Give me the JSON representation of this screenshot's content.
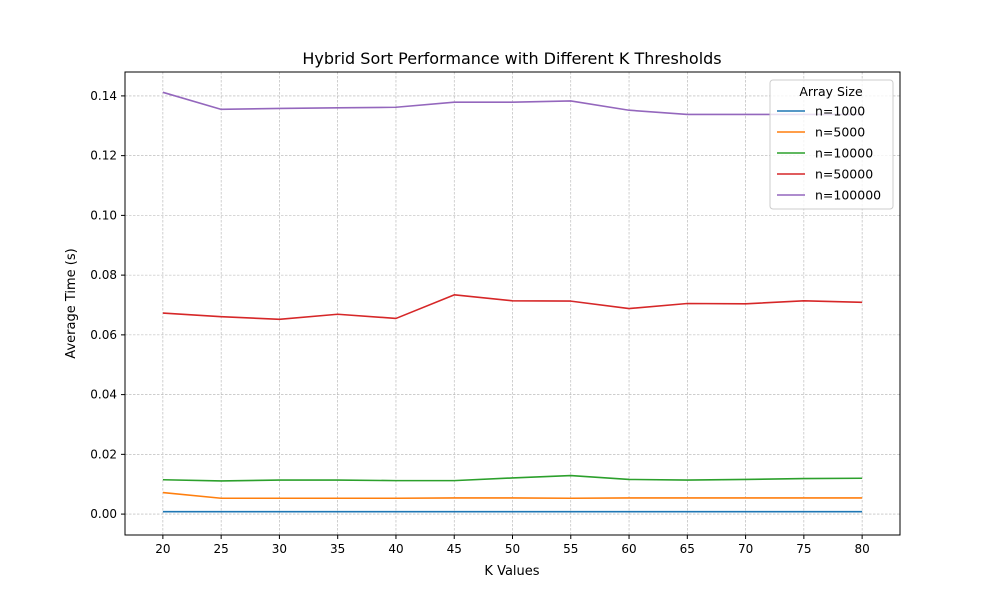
{
  "chart_data": {
    "type": "line",
    "title": "Hybrid Sort Performance with Different K Thresholds",
    "xlabel": "K Values",
    "ylabel": "Average Time (s)",
    "x": [
      20,
      25,
      30,
      35,
      40,
      45,
      50,
      55,
      60,
      65,
      70,
      75,
      80
    ],
    "xticks": [
      "20",
      "25",
      "30",
      "35",
      "40",
      "45",
      "50",
      "55",
      "60",
      "65",
      "70",
      "75",
      "80"
    ],
    "yticks": [
      "0.00",
      "0.02",
      "0.04",
      "0.06",
      "0.08",
      "0.10",
      "0.12",
      "0.14"
    ],
    "xlim": [
      16.75,
      83.25
    ],
    "ylim": [
      -0.007,
      0.148
    ],
    "grid": true,
    "legend": {
      "title": "Array Size",
      "placement": "top-right"
    },
    "series": [
      {
        "name": "n=1000",
        "color": "#1f77b4",
        "values": [
          0.0008,
          0.0008,
          0.0008,
          0.0008,
          0.0008,
          0.0008,
          0.0008,
          0.0008,
          0.0008,
          0.0008,
          0.0008,
          0.0008,
          0.0008
        ]
      },
      {
        "name": "n=5000",
        "color": "#ff7f0e",
        "values": [
          0.0072,
          0.0053,
          0.0053,
          0.0053,
          0.0053,
          0.0054,
          0.0054,
          0.0053,
          0.0054,
          0.0054,
          0.0054,
          0.0054,
          0.0054
        ]
      },
      {
        "name": "n=10000",
        "color": "#2ca02c",
        "values": [
          0.0115,
          0.0111,
          0.0114,
          0.0114,
          0.0112,
          0.0112,
          0.0121,
          0.0129,
          0.0116,
          0.0114,
          0.0116,
          0.0119,
          0.012
        ]
      },
      {
        "name": "n=50000",
        "color": "#d62728",
        "values": [
          0.0673,
          0.0661,
          0.0652,
          0.0669,
          0.0655,
          0.0734,
          0.0714,
          0.0713,
          0.0688,
          0.0705,
          0.0704,
          0.0714,
          0.0709
        ]
      },
      {
        "name": "n=100000",
        "color": "#9467bd",
        "values": [
          0.1412,
          0.1355,
          0.1358,
          0.136,
          0.1362,
          0.1379,
          0.1379,
          0.1383,
          0.1352,
          0.1338,
          0.1338,
          0.1338,
          0.1338
        ]
      }
    ]
  }
}
